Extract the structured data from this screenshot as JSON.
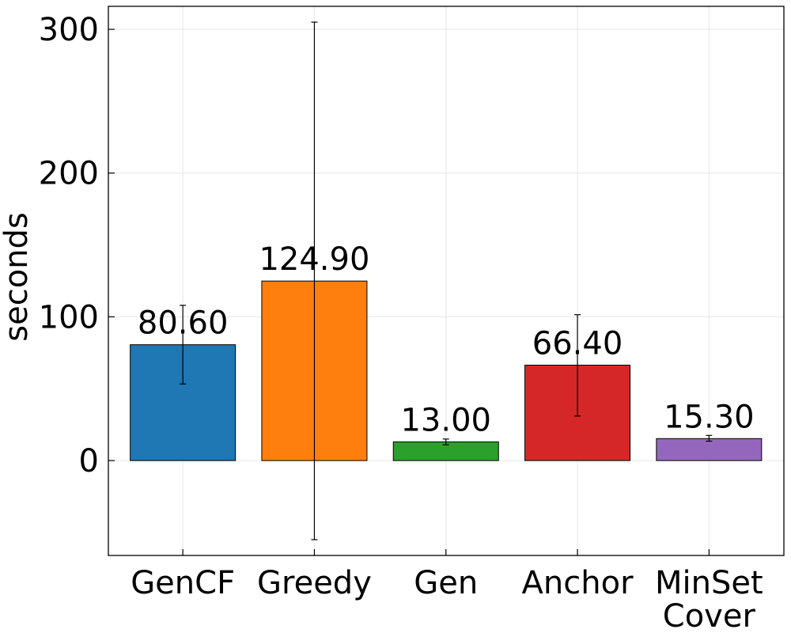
{
  "chart_data": {
    "type": "bar",
    "title": "",
    "xlabel": "",
    "ylabel": "seconds",
    "ylim": [
      -66,
      316
    ],
    "yticks": [
      0,
      100,
      200,
      300
    ],
    "grid": true,
    "legend": "none",
    "categories": [
      {
        "lines": [
          "GenCF"
        ]
      },
      {
        "lines": [
          "Greedy"
        ]
      },
      {
        "lines": [
          "Gen"
        ]
      },
      {
        "lines": [
          "Anchor"
        ]
      },
      {
        "lines": [
          "MinSet",
          "Cover"
        ]
      }
    ],
    "values": [
      80.6,
      124.9,
      13.0,
      66.4,
      15.3
    ],
    "value_labels": [
      "80.60",
      "124.90",
      "13.00",
      "66.40",
      "15.30"
    ],
    "error_low": [
      53.3,
      -55.0,
      11.0,
      31.0,
      13.5
    ],
    "error_high": [
      108.0,
      305.0,
      15.0,
      101.5,
      17.5
    ],
    "colors": [
      "#1f77b4",
      "#ff7f0e",
      "#2ca02c",
      "#d62728",
      "#9467bd"
    ]
  }
}
